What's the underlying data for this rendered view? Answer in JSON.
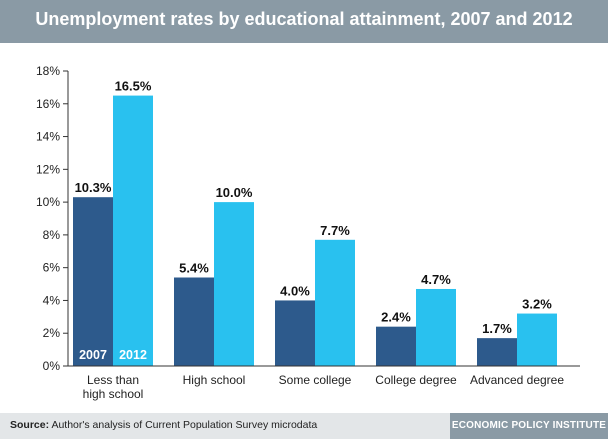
{
  "header": {
    "title": "Unemployment rates by educational attainment, 2007 and 2012"
  },
  "footer": {
    "source_label": "Source:",
    "source_text": "Author's analysis of Current Population Survey microdata",
    "publisher": "ECONOMIC POLICY INSTITUTE"
  },
  "colors": {
    "series_2007": "#2d5a8c",
    "series_2012": "#29c1ef",
    "title_bar": "#8a9aa5",
    "footer": "#e3e6e8"
  },
  "chart_data": {
    "type": "bar",
    "title": "Unemployment rates by educational attainment, 2007 and 2012",
    "categories": [
      [
        "Less than",
        "high school"
      ],
      [
        "High school"
      ],
      [
        "Some college"
      ],
      [
        "College degree"
      ],
      [
        "Advanced degree"
      ]
    ],
    "series": [
      {
        "name": "2007",
        "values": [
          10.3,
          5.4,
          4.0,
          2.4,
          1.7
        ],
        "labels": [
          "10.3%",
          "5.4%",
          "4.0%",
          "2.4%",
          "1.7%"
        ]
      },
      {
        "name": "2012",
        "values": [
          16.5,
          10.0,
          7.7,
          4.7,
          3.2
        ],
        "labels": [
          "16.5%",
          "10.0%",
          "7.7%",
          "4.7%",
          "3.2%"
        ]
      }
    ],
    "ylim": [
      0,
      18
    ],
    "yticks": [
      "0%",
      "2%",
      "4%",
      "6%",
      "8%",
      "10%",
      "12%",
      "14%",
      "16%",
      "18%"
    ],
    "grid": false,
    "legend": "inside-first-bars"
  }
}
